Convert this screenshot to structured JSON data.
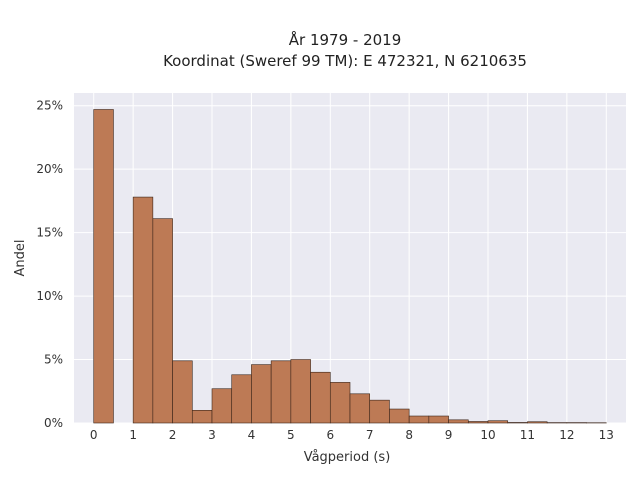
{
  "chart_data": {
    "type": "bar",
    "title": "År 1979 - 2019",
    "subtitle": "Koordinat (Sweref 99 TM): E 472321, N 6210635",
    "xlabel": "Vågperiod (s)",
    "ylabel": "Andel",
    "x_ticks": [
      "0",
      "1",
      "2",
      "3",
      "4",
      "5",
      "6",
      "7",
      "8",
      "9",
      "10",
      "11",
      "12",
      "13"
    ],
    "y_ticks": [
      "0%",
      "5%",
      "10%",
      "15%",
      "20%",
      "25%"
    ],
    "xlim": [
      -0.5,
      13.5
    ],
    "ylim": [
      0,
      26
    ],
    "bin_width": 0.5,
    "bin_starts": [
      0,
      1,
      1.5,
      2,
      2.5,
      3,
      3.5,
      4,
      4.5,
      5,
      5.5,
      6,
      6.5,
      7,
      7.5,
      8,
      8.5,
      9,
      9.5,
      10,
      10.5,
      11,
      11.5,
      12,
      12.5
    ],
    "values": [
      24.7,
      17.8,
      16.1,
      4.9,
      1.0,
      2.7,
      3.8,
      4.6,
      4.9,
      5.0,
      4.0,
      3.2,
      2.3,
      1.8,
      1.1,
      0.55,
      0.55,
      0.25,
      0.12,
      0.18,
      0.04,
      0.1,
      0.03,
      0.03,
      0.02
    ],
    "grid": true,
    "colors": {
      "bar_fill": "#bd7a55",
      "bar_edge": "#3a2418",
      "plot_bg": "#eaeaf2",
      "grid": "#ffffff"
    }
  }
}
